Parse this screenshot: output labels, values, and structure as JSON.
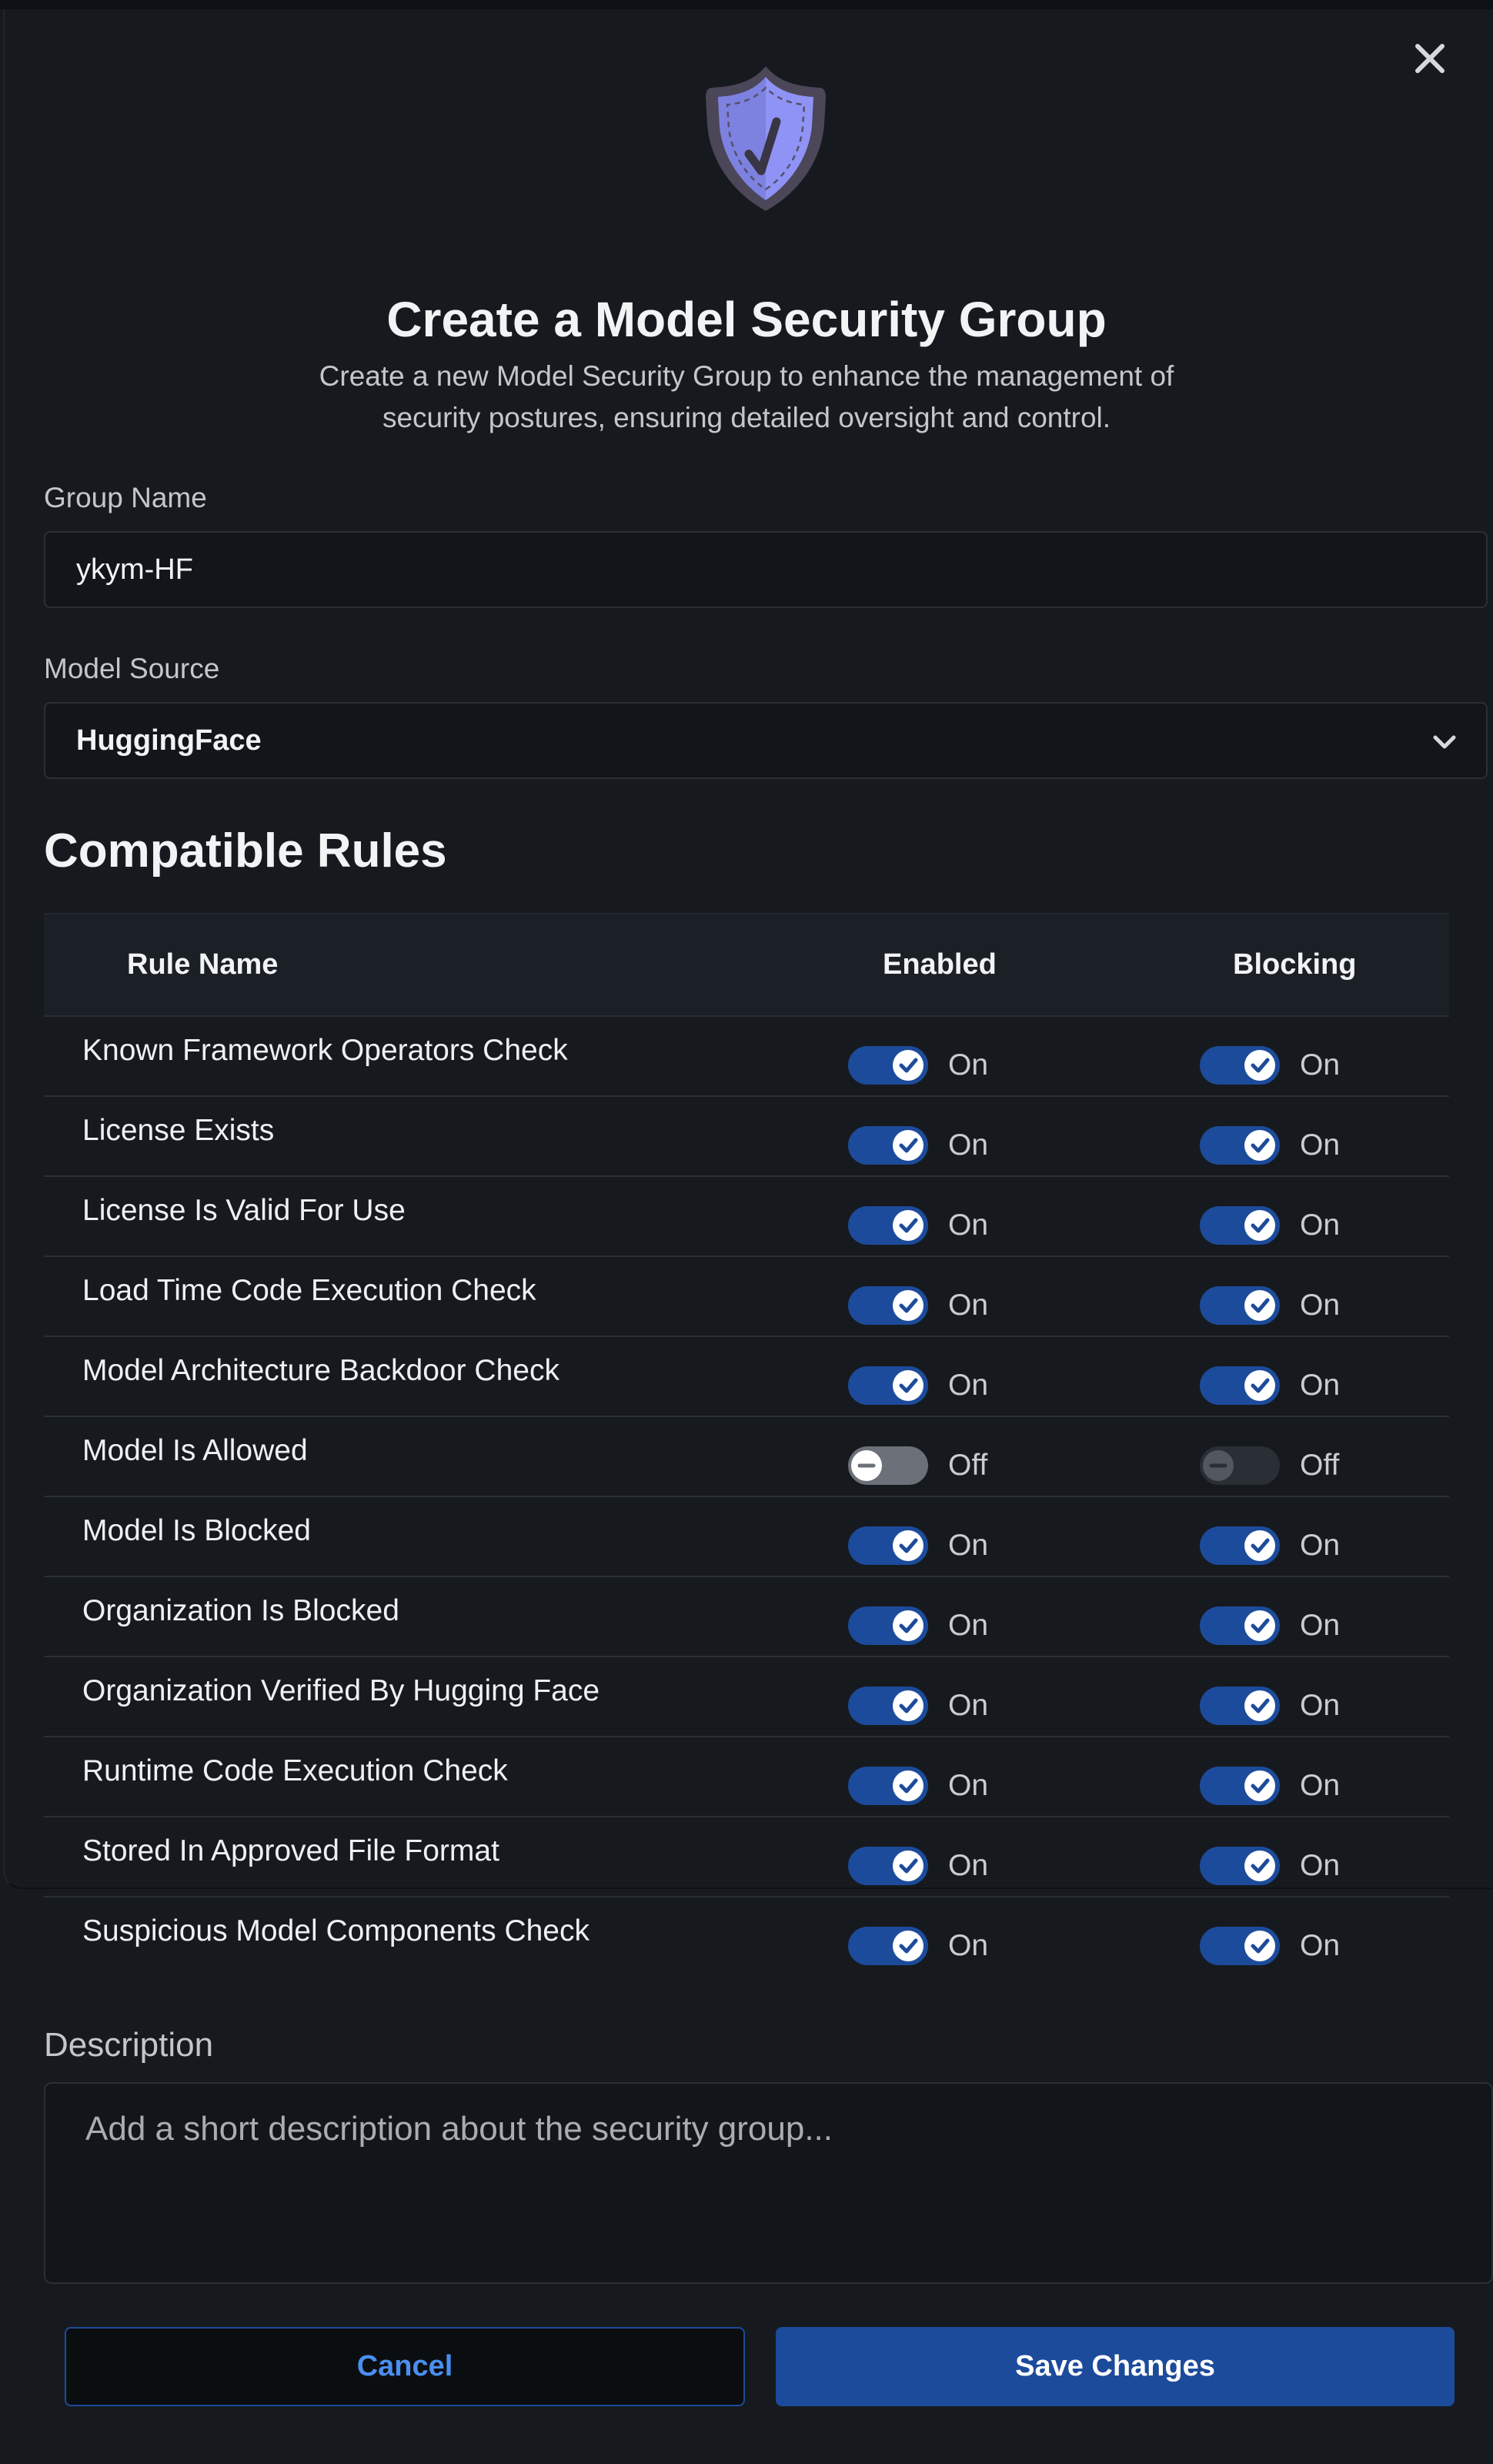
{
  "modal": {
    "title": "Create a Model Security Group",
    "subtitle": "Create a new Model Security Group to enhance the management of security postures, ensuring detailed oversight and control.",
    "close_icon": "close-icon",
    "header_icon": "shield-check-icon"
  },
  "group_name": {
    "label": "Group Name",
    "value": "ykym-HF"
  },
  "model_source": {
    "label": "Model Source",
    "value": "HuggingFace"
  },
  "rules": {
    "title": "Compatible Rules",
    "columns": [
      "Rule Name",
      "Enabled",
      "Blocking"
    ],
    "items": [
      {
        "name": "Known Framework Operators Check",
        "enabled": "On",
        "blocking": "On"
      },
      {
        "name": "License Exists",
        "enabled": "On",
        "blocking": "On"
      },
      {
        "name": "License Is Valid For Use",
        "enabled": "On",
        "blocking": "On"
      },
      {
        "name": "Load Time Code Execution Check",
        "enabled": "On",
        "blocking": "On"
      },
      {
        "name": "Model Architecture Backdoor Check",
        "enabled": "On",
        "blocking": "On"
      },
      {
        "name": "Model Is Allowed",
        "enabled": "Off",
        "blocking": "Off"
      },
      {
        "name": "Model Is Blocked",
        "enabled": "On",
        "blocking": "On"
      },
      {
        "name": "Organization Is Blocked",
        "enabled": "On",
        "blocking": "On"
      },
      {
        "name": "Organization Verified By Hugging Face",
        "enabled": "On",
        "blocking": "On"
      },
      {
        "name": "Runtime Code Execution Check",
        "enabled": "On",
        "blocking": "On"
      },
      {
        "name": "Stored In Approved File Format",
        "enabled": "On",
        "blocking": "On"
      },
      {
        "name": "Suspicious Model Components Check",
        "enabled": "On",
        "blocking": "On"
      }
    ]
  },
  "description": {
    "label": "Description",
    "placeholder": "Add a short description about the security group..."
  },
  "buttons": {
    "cancel": "Cancel",
    "save": "Save Changes"
  },
  "colors": {
    "accent": "#1d4b9b",
    "background": "#161a1f",
    "link": "#4b8ef0"
  }
}
